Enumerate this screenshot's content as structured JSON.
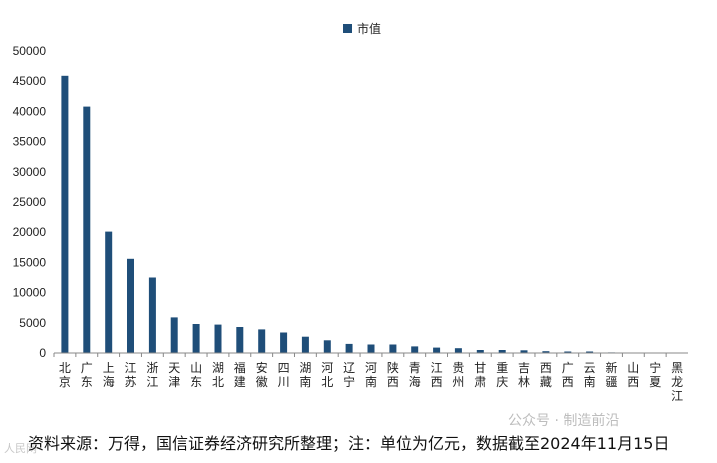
{
  "chart_data": {
    "type": "bar",
    "legend": "市值",
    "legend_position": "top-center",
    "grid": false,
    "color": "#1f4e79",
    "ylim": [
      0,
      50000
    ],
    "yticks": [
      "0",
      "5000",
      "10000",
      "15000",
      "20000",
      "25000",
      "30000",
      "35000",
      "40000",
      "45000",
      "50000"
    ],
    "categories": [
      "北京",
      "广东",
      "上海",
      "江苏",
      "浙江",
      "天津",
      "山东",
      "湖北",
      "福建",
      "安徽",
      "四川",
      "湖南",
      "河北",
      "辽宁",
      "河南",
      "陕西",
      "青海",
      "江西",
      "贵州",
      "甘肃",
      "重庆",
      "吉林",
      "西藏",
      "广西",
      "云南",
      "新疆",
      "山西",
      "宁夏",
      "黑龙江"
    ],
    "values": [
      45900,
      40800,
      20100,
      15600,
      12500,
      5900,
      4800,
      4700,
      4300,
      3900,
      3400,
      2700,
      2100,
      1500,
      1400,
      1400,
      1100,
      900,
      800,
      500,
      500,
      450,
      300,
      250,
      250,
      100,
      80,
      60,
      40
    ]
  },
  "source_note": "资料来源：万得，国信证券经济研究所整理；注：单位为亿元，数据截至2024年11月15日",
  "watermark": "公众号 · 制造前沿",
  "corner_mark": "人民网"
}
